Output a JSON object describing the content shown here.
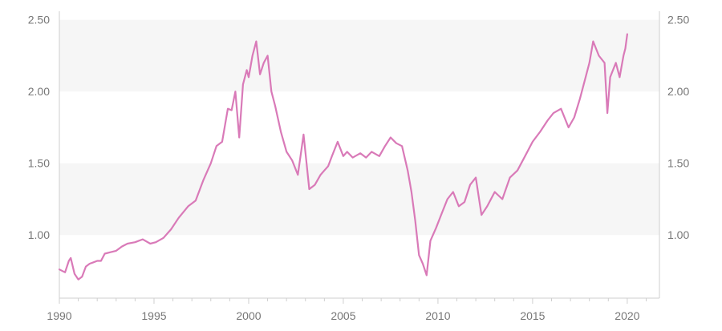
{
  "chart_data": {
    "type": "line",
    "title": "",
    "xlabel": "",
    "ylabel": "",
    "xlim": [
      1990,
      2021.7
    ],
    "ylim": [
      0.56,
      2.56
    ],
    "x_ticks": [
      "1990",
      "1995",
      "2000",
      "2005",
      "2010",
      "2015",
      "2020"
    ],
    "y_ticks": [
      "1.00",
      "1.50",
      "2.00",
      "2.50"
    ],
    "y_axis_both_sides": true,
    "grid": "alternating horizontal bands",
    "legend": "none",
    "colors": {
      "line": "#d97ab8",
      "band": "#f6f6f6",
      "axis": "#cfcfcf"
    },
    "series": [
      {
        "x": [
          1990.0,
          1990.3,
          1990.5,
          1990.6,
          1990.8,
          1991.0,
          1991.2,
          1991.4,
          1991.6,
          1991.8,
          1992.0,
          1992.2,
          1992.4,
          1992.7,
          1993.0,
          1993.3,
          1993.6,
          1994.0,
          1994.4,
          1994.8,
          1995.1,
          1995.5,
          1995.9,
          1996.3,
          1996.8,
          1997.2,
          1997.6,
          1998.0,
          1998.3,
          1998.6,
          1998.9,
          1999.1,
          1999.3,
          1999.5,
          1999.7,
          1999.9,
          2000.0,
          2000.2,
          2000.4,
          2000.6,
          2000.8,
          2001.0,
          2001.2,
          2001.4,
          2001.7,
          2002.0,
          2002.3,
          2002.6,
          2002.9,
          2003.2,
          2003.5,
          2003.8,
          2004.0,
          2004.2,
          2004.4,
          2004.7,
          2005.0,
          2005.2,
          2005.5,
          2005.9,
          2006.2,
          2006.5,
          2006.9,
          2007.2,
          2007.5,
          2007.8,
          2008.1,
          2008.4,
          2008.6,
          2008.8,
          2009.0,
          2009.2,
          2009.4,
          2009.6,
          2009.9,
          2010.2,
          2010.5,
          2010.8,
          2011.1,
          2011.4,
          2011.7,
          2012.0,
          2012.3,
          2012.6,
          2013.0,
          2013.4,
          2013.8,
          2014.2,
          2014.6,
          2015.0,
          2015.4,
          2015.8,
          2016.1,
          2016.5,
          2016.9,
          2017.2,
          2017.5,
          2017.8,
          2018.0,
          2018.2,
          2018.5,
          2018.8,
          2018.95,
          2019.1,
          2019.4,
          2019.6,
          2019.8,
          2019.9,
          2020.0
        ],
        "values": [
          0.76,
          0.74,
          0.82,
          0.84,
          0.73,
          0.69,
          0.71,
          0.78,
          0.8,
          0.81,
          0.82,
          0.82,
          0.87,
          0.88,
          0.89,
          0.92,
          0.94,
          0.95,
          0.97,
          0.94,
          0.95,
          0.98,
          1.04,
          1.12,
          1.2,
          1.24,
          1.38,
          1.5,
          1.62,
          1.65,
          1.88,
          1.87,
          2.0,
          1.68,
          2.05,
          2.15,
          2.1,
          2.25,
          2.35,
          2.12,
          2.2,
          2.25,
          2.0,
          1.9,
          1.72,
          1.58,
          1.52,
          1.42,
          1.7,
          1.32,
          1.35,
          1.42,
          1.45,
          1.48,
          1.55,
          1.65,
          1.55,
          1.58,
          1.54,
          1.57,
          1.54,
          1.58,
          1.55,
          1.62,
          1.68,
          1.64,
          1.62,
          1.45,
          1.3,
          1.1,
          0.86,
          0.8,
          0.72,
          0.96,
          1.05,
          1.15,
          1.25,
          1.3,
          1.2,
          1.23,
          1.35,
          1.4,
          1.14,
          1.2,
          1.3,
          1.25,
          1.4,
          1.45,
          1.55,
          1.65,
          1.72,
          1.8,
          1.85,
          1.88,
          1.75,
          1.82,
          1.95,
          2.1,
          2.2,
          2.35,
          2.25,
          2.2,
          1.85,
          2.1,
          2.2,
          2.1,
          2.25,
          2.3,
          2.4
        ]
      }
    ]
  }
}
